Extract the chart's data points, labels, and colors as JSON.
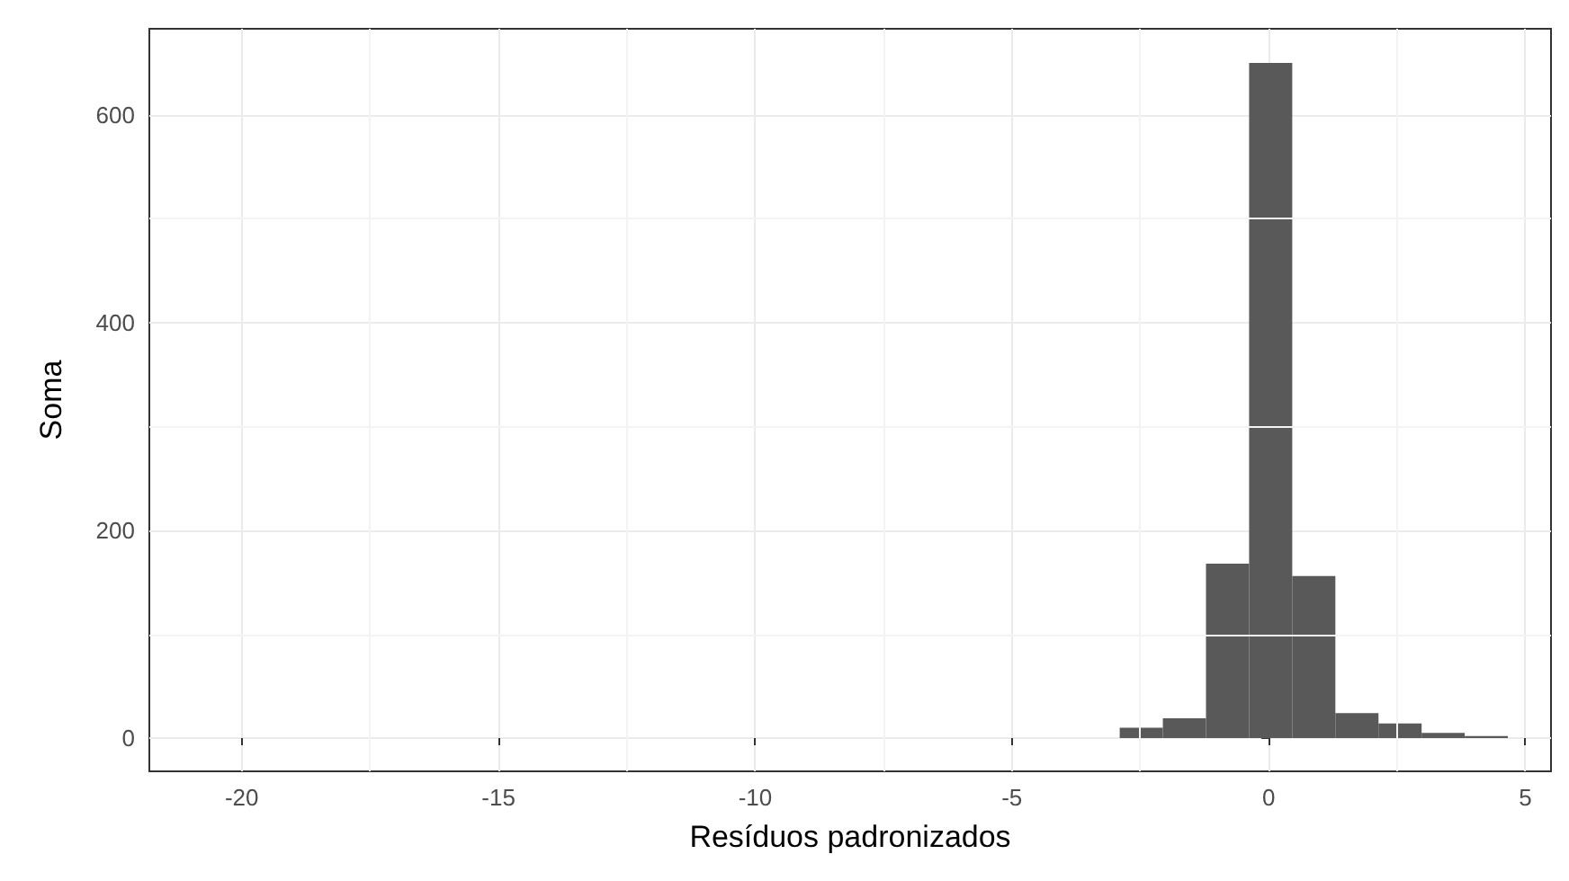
{
  "chart_data": {
    "type": "histogram",
    "xlabel": "Resíduos padronizados",
    "ylabel": "Soma",
    "color": "#595959",
    "bins": [
      -2.9,
      -2.06,
      -1.22,
      -0.38,
      0.46,
      1.3,
      2.14,
      2.98,
      3.82,
      4.66
    ],
    "values": [
      10,
      19,
      168,
      650,
      156,
      24,
      14,
      5,
      2
    ],
    "xlim": [
      -21.8,
      5.5
    ],
    "xticks": [
      -20,
      -15,
      -10,
      -5,
      0,
      5
    ],
    "ylim": [
      -32,
      683
    ],
    "yticks": [
      0,
      200,
      400,
      600
    ],
    "grid": true
  }
}
